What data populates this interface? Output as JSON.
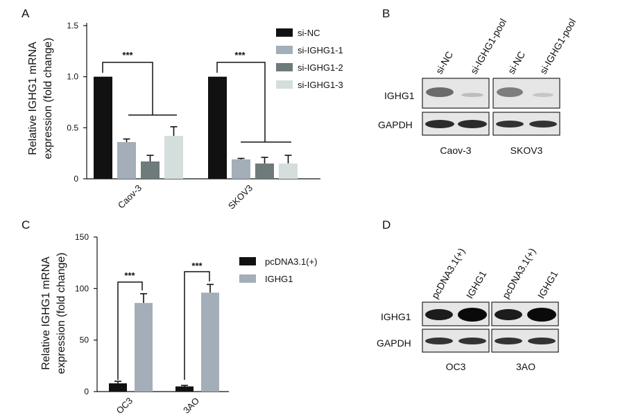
{
  "panels": {
    "a": "A",
    "b": "B",
    "c": "C",
    "d": "D"
  },
  "colors": {
    "si_nc": "#111111",
    "si1": "#a3aeb8",
    "si2": "#6f7a7a",
    "si3": "#d3dedd",
    "pc": "#111111",
    "ighg1": "#a3aeb8"
  },
  "chart_data": [
    {
      "type": "bar",
      "panel": "A",
      "ylabel_line1": "Relative IGHG1 mRNA",
      "ylabel_line2": "expression (fold change)",
      "ylim": [
        0,
        1.5
      ],
      "yticks": [
        "0",
        "0.5",
        "1.0",
        "1.5"
      ],
      "ytick_values": [
        0,
        0.5,
        1.0,
        1.5
      ],
      "categories": [
        "Caov-3",
        "SKOV3"
      ],
      "series": [
        {
          "name": "si-NC",
          "values": [
            1.0,
            1.0
          ],
          "errors": [
            0,
            0
          ]
        },
        {
          "name": "si-IGHG1-1",
          "values": [
            0.36,
            0.19
          ],
          "errors": [
            0.03,
            0.01
          ]
        },
        {
          "name": "si-IGHG1-2",
          "values": [
            0.17,
            0.15
          ],
          "errors": [
            0.06,
            0.06
          ]
        },
        {
          "name": "si-IGHG1-3",
          "values": [
            0.42,
            0.15
          ],
          "errors": [
            0.09,
            0.08
          ]
        }
      ],
      "significance": [
        "***",
        "***"
      ],
      "legend_position": "top-right"
    },
    {
      "type": "bar",
      "panel": "C",
      "ylabel_line1": "Relative IGHG1 mRNA",
      "ylabel_line2": "expression (fold change)",
      "ylim": [
        0,
        150
      ],
      "yticks": [
        "0",
        "50",
        "100",
        "150"
      ],
      "ytick_values": [
        0,
        50,
        100,
        150
      ],
      "categories": [
        "OC3",
        "3AO"
      ],
      "series": [
        {
          "name": "pcDNA3.1(+)",
          "values": [
            8,
            5
          ],
          "errors": [
            2,
            1
          ]
        },
        {
          "name": "IGHG1",
          "values": [
            86,
            96
          ],
          "errors": [
            9,
            8
          ]
        }
      ],
      "significance": [
        "***",
        "***"
      ],
      "legend_position": "top-right"
    }
  ],
  "blot_b": {
    "lanes": [
      "si-NC",
      "si-IGHG1-pool",
      "si-NC",
      "si-IGHG1-pool"
    ],
    "rows": [
      "IGHG1",
      "GAPDH"
    ],
    "cells": [
      "Caov-3",
      "SKOV3"
    ]
  },
  "blot_d": {
    "lanes": [
      "pcDNA3.1(+)",
      "IGHG1",
      "pcDNA3.1(+)",
      "IGHG1"
    ],
    "rows": [
      "IGHG1",
      "GAPDH"
    ],
    "cells": [
      "OC3",
      "3AO"
    ]
  }
}
